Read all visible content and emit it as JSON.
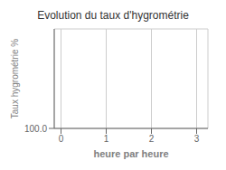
{
  "chart_data": {
    "type": "line",
    "title": "Evolution du taux d'hygrométrie",
    "xlabel": "heure par heure",
    "ylabel": "Taux hygrométrie %",
    "xlim": [
      -0.15,
      3.25
    ],
    "xticks": [
      0,
      1,
      2,
      3
    ],
    "ylim": [
      100.0,
      200.0
    ],
    "yticks": [
      {
        "value": 100.0,
        "label": "100.0"
      }
    ],
    "grid": true
  }
}
